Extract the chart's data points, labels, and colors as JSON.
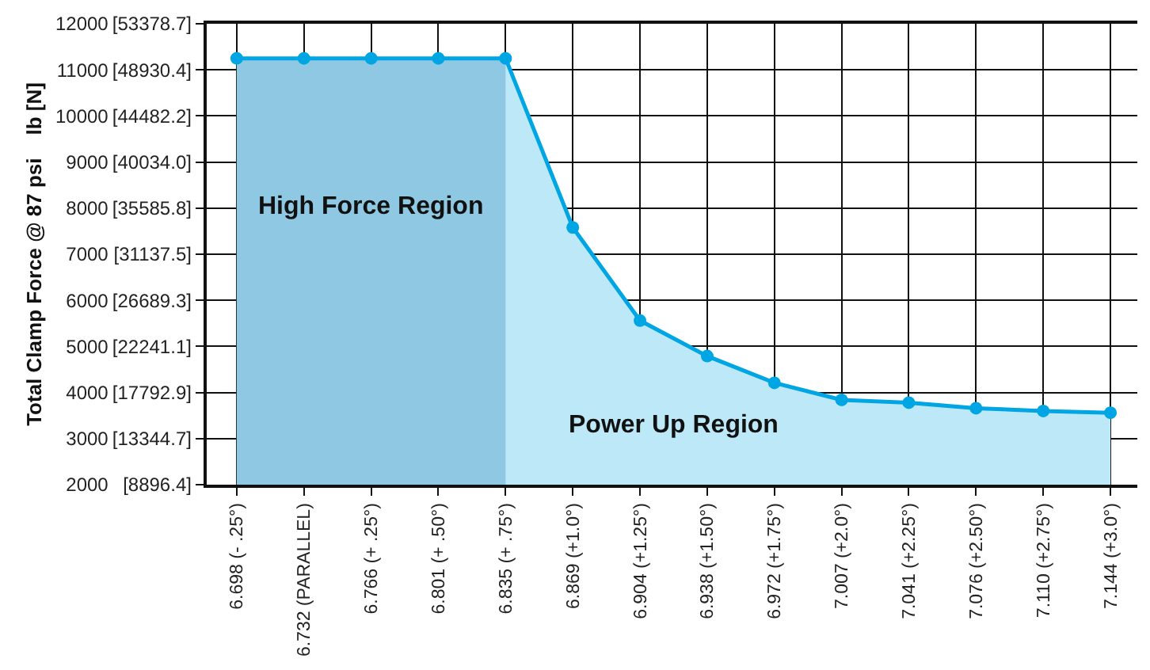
{
  "chart_data": {
    "type": "area",
    "ylabel": "Total Clamp Force @ 87 psi    lb [N]",
    "categories": [
      "6.698 (- .25°)",
      "6.732 (PARALLEL)",
      "6.766 (+ .25°)",
      "6.801 (+ .50°)",
      "6.835 (+ .75°)",
      "6.869 (+1.0°)",
      "6.904 (+1.25°)",
      "6.938 (+1.50°)",
      "6.972 (+1.75°)",
      "7.007 (+2.0°)",
      "7.041 (+2.25°)",
      "7.076 (+2.50°)",
      "7.110 (+2.75°)",
      "7.144 (+3.0°)"
    ],
    "series": [
      {
        "name": "Power Up Region",
        "color": "#00a6e4",
        "marker": "circle",
        "values": [
          11250,
          11250,
          11250,
          11250,
          11250,
          7580,
          5560,
          4790,
          4210,
          3840,
          3780,
          3660,
          3600,
          3560
        ]
      },
      {
        "name": "High Force Region",
        "color": "#8ec8e2",
        "marker": "none",
        "values": [
          11250,
          11250,
          11250,
          11250,
          11250,
          null,
          null,
          null,
          null,
          null,
          null,
          null,
          null,
          null
        ]
      }
    ],
    "ylim": [
      2000,
      12000
    ],
    "yticks": [
      2000,
      3000,
      4000,
      5000,
      6000,
      7000,
      8000,
      9000,
      10000,
      11000,
      12000
    ],
    "y2lim": [
      8896.4,
      53378.7
    ],
    "y2ticks": [
      {
        "value": 8896.4,
        "label": "[8896.4]"
      },
      {
        "value": 13344.7,
        "label": "[13344.7]"
      },
      {
        "value": 17792.9,
        "label": "[17792.9]"
      },
      {
        "value": 22241.1,
        "label": "[22241.1]"
      },
      {
        "value": 26689.3,
        "label": "[26689.3]"
      },
      {
        "value": 31137.5,
        "label": "[31137.5]"
      },
      {
        "value": 35585.8,
        "label": "[35585.8]"
      },
      {
        "value": 40034.0,
        "label": "[40034.0]"
      },
      {
        "value": 44482.2,
        "label": "[44482.2]"
      },
      {
        "value": 48930.4,
        "label": "[48930.4]"
      },
      {
        "value": 53378.7,
        "label": "[53378.7]"
      }
    ],
    "grid": true,
    "legend": false
  }
}
